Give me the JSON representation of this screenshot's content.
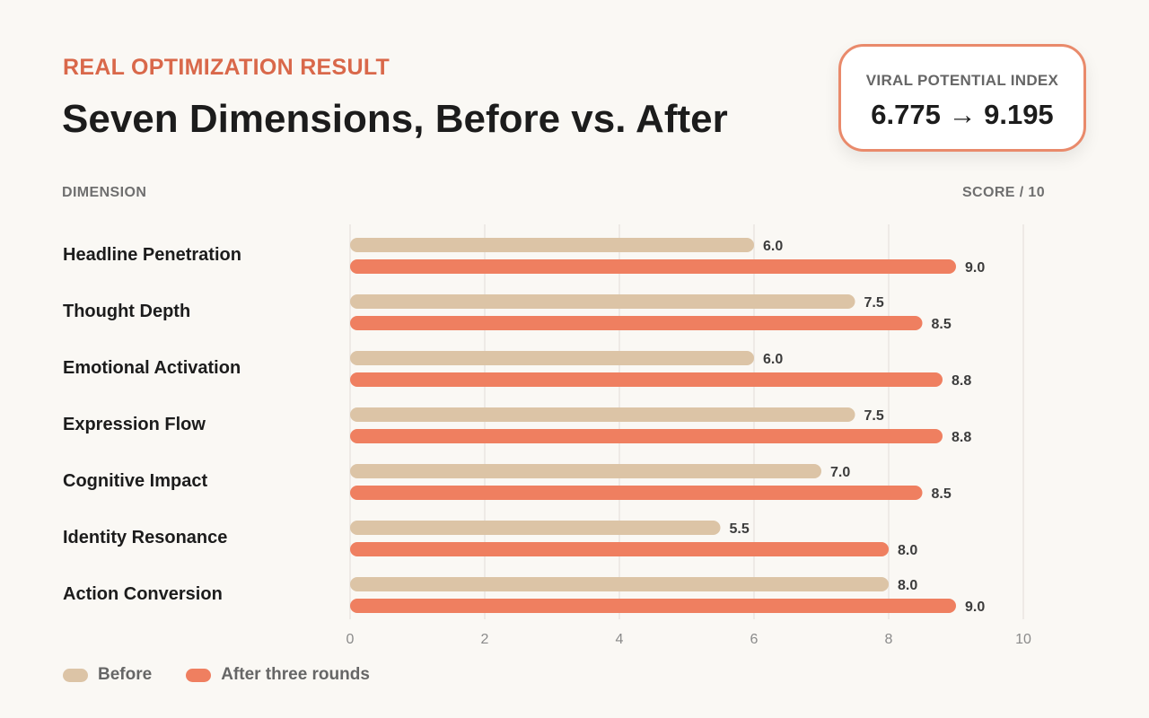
{
  "header": {
    "eyebrow": "REAL OPTIMIZATION RESULT",
    "title": "Seven Dimensions, Before vs. After"
  },
  "index_card": {
    "label": "VIRAL POTENTIAL INDEX",
    "value": "6.775 → 9.195"
  },
  "columns": {
    "dimension": "DIMENSION",
    "score": "SCORE / 10"
  },
  "colors": {
    "before": "#dcc4a6",
    "after": "#ef7f60",
    "accent": "#d9684a",
    "grid": "#e6e2dc"
  },
  "chart_data": {
    "type": "bar",
    "orientation": "horizontal",
    "categories": [
      "Headline Penetration",
      "Thought Depth",
      "Emotional Activation",
      "Expression Flow",
      "Cognitive Impact",
      "Identity Resonance",
      "Action Conversion"
    ],
    "series": [
      {
        "name": "Before",
        "values": [
          6.0,
          7.5,
          6.0,
          7.5,
          7.0,
          5.5,
          8.0
        ]
      },
      {
        "name": "After three rounds",
        "values": [
          9.0,
          8.5,
          8.8,
          8.8,
          8.5,
          8.0,
          9.0
        ]
      }
    ],
    "value_labels": [
      [
        "6.0",
        "7.5",
        "6.0",
        "7.5",
        "7.0",
        "5.5",
        "8.0"
      ],
      [
        "9.0",
        "8.5",
        "8.8",
        "8.8",
        "8.5",
        "8.0",
        "9.0"
      ]
    ],
    "xlim": [
      0,
      10
    ],
    "xticks": [
      "0",
      "2",
      "4",
      "6",
      "8",
      "10"
    ],
    "grid": true,
    "legend_position": "bottom-left"
  }
}
